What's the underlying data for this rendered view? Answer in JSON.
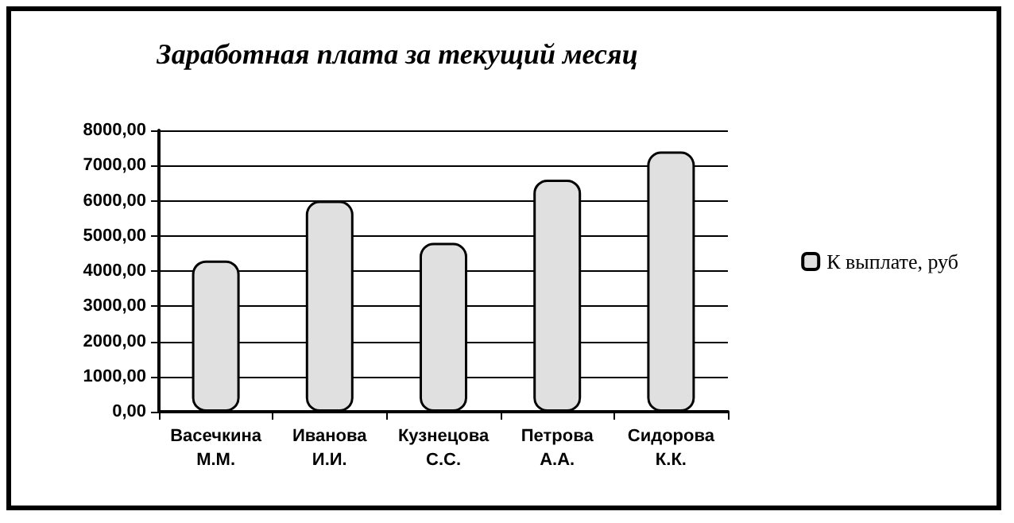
{
  "chart_data": {
    "type": "bar",
    "title": "Заработная плата за текущий месяц",
    "categories": [
      "Васечкина\nМ.М.",
      "Иванова\nИ.И.",
      "Кузнецова\nС.С.",
      "Петрова\nА.А.",
      "Сидорова\nК.К."
    ],
    "series": [
      {
        "name": "К выплате, руб",
        "color": "#e0e0e0",
        "values": [
          4300,
          6000,
          4800,
          6600,
          7400
        ]
      }
    ],
    "ylim": [
      0,
      8000
    ],
    "yticks": [
      {
        "value": 0,
        "label": "0,00"
      },
      {
        "value": 1000,
        "label": "1000,00"
      },
      {
        "value": 2000,
        "label": "2000,00"
      },
      {
        "value": 3000,
        "label": "3000,00"
      },
      {
        "value": 4000,
        "label": "4000,00"
      },
      {
        "value": 5000,
        "label": "5000,00"
      },
      {
        "value": 6000,
        "label": "6000,00"
      },
      {
        "value": 7000,
        "label": "7000,00"
      },
      {
        "value": 8000,
        "label": "8000,00"
      }
    ],
    "grid": "y",
    "legend": "right"
  }
}
